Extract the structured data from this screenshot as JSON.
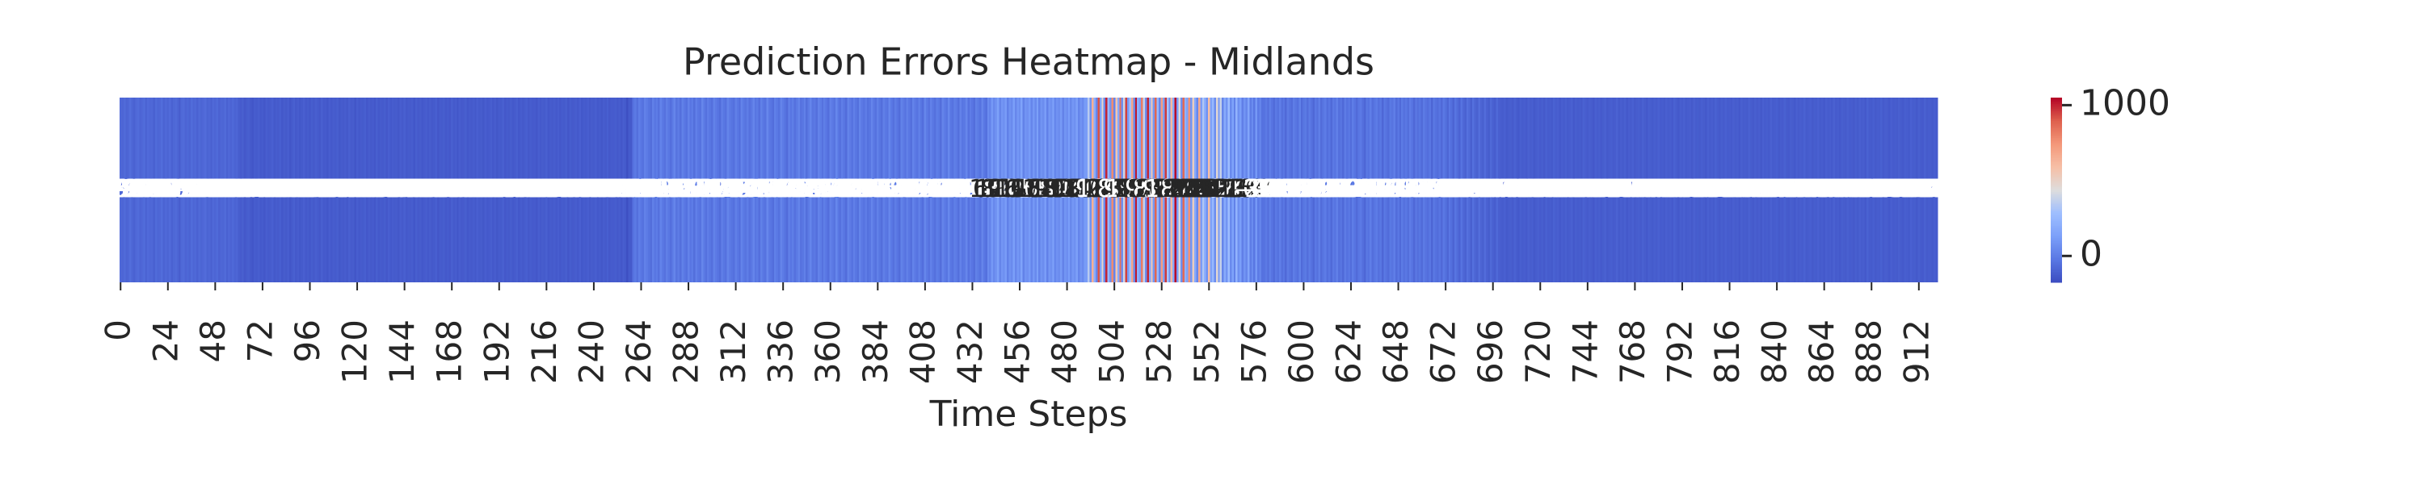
{
  "chart_data": {
    "type": "heatmap",
    "title": "Prediction Errors Heatmap - Midlands",
    "x_label": "Time Steps",
    "colormap": "coolwarm",
    "clim": [
      -175,
      1050
    ],
    "cticks": [
      0,
      1000
    ],
    "xlim": [
      0,
      922
    ],
    "xticks": [
      0,
      24,
      48,
      72,
      96,
      120,
      144,
      168,
      192,
      216,
      240,
      264,
      288,
      312,
      336,
      360,
      384,
      408,
      432,
      456,
      480,
      504,
      528,
      552,
      576,
      600,
      624,
      648,
      672,
      696,
      720,
      744,
      768,
      792,
      816,
      840,
      864,
      888,
      912
    ],
    "values": [
      -72,
      -85,
      -64,
      -90,
      -78,
      -55,
      -81,
      -96,
      -70,
      -62,
      -88,
      -74,
      -59,
      -93,
      -67,
      -80,
      -75,
      -101,
      -66,
      -84,
      -79,
      -58,
      -92,
      -71,
      -86,
      -63,
      -97,
      -77,
      -69,
      -82,
      -110,
      -73,
      -65,
      -89,
      -76,
      -94,
      -61,
      -83,
      -72,
      -98,
      -68,
      -87,
      -74,
      -60,
      -91,
      -79,
      -105,
      -70,
      -85,
      -66,
      -95,
      -78,
      -81,
      -64,
      -99,
      -75,
      -88,
      -71,
      -92,
      -83,
      -112,
      -120,
      -105,
      -131,
      -118,
      -109,
      -125,
      -140,
      -115,
      -122,
      -108,
      -128,
      -117,
      -135,
      -111,
      -124,
      -119,
      -102,
      -130,
      -113,
      -121,
      -107,
      -133,
      -116,
      -126,
      -110,
      -138,
      -119,
      -104,
      -127,
      -114,
      -132,
      -123,
      -106,
      -129,
      -118,
      -136,
      -112,
      -125,
      -109,
      -117,
      -131,
      -103,
      -124,
      -120,
      -137,
      -111,
      -128,
      -115,
      -122,
      -108,
      -134,
      -119,
      -126,
      -113,
      -130,
      -105,
      -121,
      -116,
      -139,
      -110,
      -127,
      -118,
      -123,
      -107,
      -132,
      -114,
      -125,
      -120,
      -136,
      -109,
      -129,
      -117,
      -124,
      -112,
      -131,
      -106,
      -128,
      -115,
      -122,
      -119,
      -134,
      -111,
      -126,
      -104,
      -130,
      -118,
      -121,
      -113,
      -137,
      -108,
      -125,
      -116,
      -133,
      -120,
      -110,
      -127,
      -114,
      -129,
      -123,
      -107,
      -135,
      -117,
      -122,
      -112,
      -128,
      -119,
      -131,
      -105,
      -124,
      -115,
      -138,
      -110,
      -126,
      -121,
      -109,
      -132,
      -118,
      -125,
      -113,
      -130,
      -106,
      -123,
      -116,
      -134,
      -111,
      -127,
      -120,
      -108,
      -129,
      -114,
      -136,
      -119,
      -122,
      -103,
      -131,
      -117,
      -125,
      -112,
      -128,
      -121,
      -109,
      -133,
      -115,
      -126,
      -118,
      -107,
      -130,
      -113,
      -124,
      -120,
      -135,
      -111,
      -127,
      -116,
      -122,
      -105,
      -132,
      -119,
      -125,
      -114,
      -128,
      -110,
      -131,
      -117,
      -123,
      -108,
      -136,
      -112,
      -126,
      -121,
      -115,
      -129,
      -106,
      -133,
      -118,
      -124,
      -111,
      -130,
      -116,
      -122,
      -109,
      -127,
      -119,
      -134,
      -113,
      -125,
      -107,
      -131,
      -117,
      -120,
      -112,
      -128,
      -115,
      -136,
      -110,
      -123,
      -160,
      -118,
      -126,
      -35,
      -12,
      -48,
      5,
      -20,
      -41,
      18,
      -8,
      -30,
      -55,
      12,
      -25,
      -3,
      -44,
      25,
      -15,
      -38,
      8,
      -22,
      -50,
      -10,
      30,
      -33,
      -5,
      -46,
      15,
      -18,
      -40,
      22,
      -28,
      -2,
      -52,
      10,
      -24,
      -36,
      35,
      -14,
      -42,
      3,
      -26,
      -47,
      20,
      -9,
      -32,
      -58,
      14,
      -21,
      -39,
      28,
      -6,
      -29,
      -45,
      9,
      -17,
      -53,
      24,
      -11,
      -34,
      1,
      -43,
      -19,
      32,
      -27,
      -7,
      -49,
      16,
      -23,
      -37,
      40,
      -13,
      -31,
      -56,
      11,
      -16,
      -41,
      26,
      -4,
      -35,
      -60,
      19,
      -26,
      6,
      -44,
      -12,
      27,
      -38,
      -20,
      13,
      -51,
      -8,
      33,
      -29,
      -15,
      -46,
      21,
      -3,
      -39,
      7,
      -24,
      -54,
      17,
      -10,
      -33,
      38,
      -18,
      -42,
      4,
      -27,
      -57,
      23,
      -6,
      -36,
      12,
      -21,
      -48,
      29,
      -14,
      -31,
      -1,
      -45,
      -22,
      31,
      -9,
      -40,
      15,
      -25,
      -52,
      8,
      -17,
      -34,
      36,
      -11,
      -44,
      2,
      -28,
      -59,
      20,
      -5,
      -37,
      14,
      -19,
      -47,
      25,
      -13,
      -32,
      10,
      -26,
      -50,
      34,
      -7,
      -38,
      18,
      -23,
      -43,
      5,
      -16,
      -55,
      27,
      -2,
      -30,
      42,
      -20,
      -35,
      11,
      -9,
      -48,
      22,
      -27,
      -14,
      37,
      -41,
      3,
      -24,
      -53,
      16,
      -12,
      -36,
      30,
      -18,
      -45,
      60,
      25,
      110,
      45,
      85,
      140,
      30,
      95,
      70,
      120,
      15,
      80,
      55,
      130,
      40,
      100,
      65,
      150,
      20,
      90,
      75,
      115,
      35,
      105,
      50,
      135,
      28,
      88,
      62,
      125,
      18,
      98,
      72,
      145,
      38,
      82,
      58,
      112,
      22,
      92,
      68,
      128,
      44,
      102,
      78,
      138,
      32,
      86,
      52,
      118,
      120,
      350,
      80,
      650,
      200,
      40,
      920,
      150,
      480,
      60,
      1000,
      250,
      90,
      780,
      30,
      560,
      180,
      850,
      70,
      400,
      950,
      110,
      300,
      690,
      50,
      1020,
      220,
      130,
      820,
      380,
      60,
      990,
      170,
      540,
      100,
      880,
      260,
      40,
      720,
      140,
      960,
      310,
      80,
      610,
      190,
      1040,
      120,
      450,
      70,
      870,
      230,
      150,
      760,
      90,
      520,
      180,
      40,
      680,
      120,
      330,
      210,
      80,
      590,
      140,
      260,
      60,
      470,
      110,
      380,
      30,
      190,
      90,
      280,
      50,
      150,
      20,
      230,
      70,
      130,
      10,
      90,
      40,
      160,
      0,
      60,
      -20,
      110,
      -10,
      30,
      -40,
      -35,
      -10,
      -55,
      5,
      -28,
      -62,
      -15,
      -40,
      10,
      -48,
      -22,
      -70,
      -5,
      -33,
      -58,
      0,
      -25,
      -45,
      15,
      -66,
      -30,
      -12,
      -52,
      -8,
      -38,
      -75,
      -18,
      -42,
      8,
      -60,
      -26,
      -3,
      -50,
      -20,
      -68,
      -14,
      -36,
      12,
      -46,
      -29,
      -72,
      -6,
      -41,
      -17,
      -56,
      2,
      -32,
      -64,
      -24,
      -9,
      -49,
      -78,
      -13,
      -37,
      6,
      -53,
      -27,
      -4,
      -44,
      -21,
      -80,
      -11,
      -39,
      -61,
      -16,
      -34,
      4,
      -57,
      -23,
      -67,
      -7,
      -43,
      -19,
      -51,
      -1,
      -31,
      -74,
      -15,
      -47,
      -26,
      -65,
      -8,
      -35,
      -54,
      -20,
      -82,
      -12,
      -40,
      -59,
      -28,
      -70,
      -18,
      -45,
      -84,
      -24,
      -50,
      -88,
      -30,
      -62,
      -92,
      -36,
      -76,
      -98,
      -42,
      -66,
      -104,
      -48,
      -86,
      -100,
      -55,
      -90,
      -108,
      -60,
      -95,
      -112,
      -68,
      -102,
      -115,
      -72,
      -106,
      -110,
      -118,
      -102,
      -125,
      -115,
      -108,
      -121,
      -97,
      -113,
      -128,
      -105,
      -119,
      -111,
      -124,
      -99,
      -116,
      -107,
      -130,
      -114,
      -103,
      -120,
      -109,
      -126,
      -101,
      -117,
      -112,
      -123,
      -96,
      -115,
      -106,
      -129,
      -110,
      -118,
      -104,
      -122,
      -113,
      -100,
      -127,
      -108,
      -119,
      -114,
      -125,
      -98,
      -111,
      -121,
      -106,
      -116,
      -131,
      -103,
      -118,
      -109,
      -124,
      -112,
      -100,
      -126,
      -115,
      -107,
      -120,
      -113,
      -95,
      -122,
      -110,
      -117,
      -104,
      -128,
      -111,
      -119,
      -102,
      -125,
      -114,
      -108,
      -121,
      -99,
      -116,
      -127,
      -105,
      -112,
      -123,
      -109,
      -118,
      -101,
      -120,
      -113,
      -126,
      -106,
      -117,
      -111,
      -124,
      -97,
      -115,
      -129,
      -108,
      -119,
      -103,
      -122,
      -114,
      -110,
      -125,
      -100,
      -118,
      -112,
      -121,
      -107,
      -116,
      -128,
      -104,
      -119,
      -111,
      -123,
      -98,
      -115,
      -126,
      -109,
      -120,
      -102,
      -117,
      -113,
      -124,
      -106,
      -119,
      -110,
      -127,
      -103,
      -118,
      -114,
      -122,
      -100,
      -116,
      -125,
      -108,
      -121,
      -111,
      -130,
      -105,
      -117,
      -112,
      -123,
      -99,
      -119,
      -115,
      -107,
      -126,
      -113,
      -120,
      -101,
      -118,
      -124,
      -109,
      -116,
      -128,
      -104,
      -121,
      -111,
      -119,
      -97,
      -123,
      -114,
      -107,
      -125,
      -112,
      -118,
      -102,
      -122,
      -115,
      -129,
      -106,
      -117,
      -110,
      -124,
      -100,
      -120,
      -113,
      -127,
      -108,
      -116,
      -121,
      -103,
      -119,
      -114,
      -126,
      -109,
      -123,
      -105,
      -118,
      -111,
      -128,
      -98,
      -117,
      -122,
      -107,
      -125,
      -113,
      -119,
      -101,
      -124,
      -110,
      -116,
      -127,
      -106,
      -120,
      -114,
      -121,
      -104,
      -118,
      -126,
      -109,
      -115,
      -123,
      -102,
      -119,
      -112,
      -128,
      -108,
      -117,
      -124,
      -100,
      -121,
      -113,
      -116,
      -125,
      -111,
      -120
    ]
  }
}
